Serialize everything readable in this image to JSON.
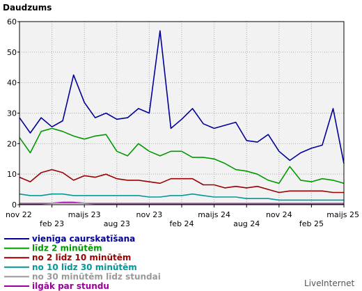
{
  "chart_data": {
    "type": "line",
    "title": "Daudzums",
    "ylim": [
      0,
      60
    ],
    "y_ticks": [
      0,
      10,
      20,
      30,
      40,
      50,
      60
    ],
    "grid": true,
    "x_tick_labels": [
      "nov 22",
      "feb 23",
      "maijs 23",
      "aug 23",
      "nov 23",
      "feb 24",
      "maijs 24",
      "aug 24",
      "nov 24",
      "feb 25",
      "maijs 25"
    ],
    "legend_position": "bottom",
    "series": [
      {
        "name": "vienīga caurskatīšana",
        "color": "#000099",
        "values": [
          28.5,
          23.5,
          28.5,
          25.5,
          27.5,
          42.5,
          33.5,
          28.5,
          30,
          28,
          28.5,
          31.5,
          30,
          57,
          25,
          28,
          31.5,
          26.5,
          25,
          26,
          27,
          21,
          20.5,
          23,
          17.5,
          14.5,
          17,
          18.5,
          19.5,
          31.5,
          13.5
        ]
      },
      {
        "name": "līdz 2 minūtēm",
        "color": "#009900",
        "values": [
          22,
          17,
          24,
          25,
          24,
          22.5,
          21.5,
          22.5,
          23,
          17.5,
          16,
          20,
          17.5,
          16,
          17.5,
          17.5,
          15.5,
          15.5,
          15,
          13.5,
          11.5,
          11,
          10,
          8,
          7,
          12.5,
          8,
          7.5,
          8.5,
          8,
          7
        ]
      },
      {
        "name": "no 2 līdz 10 minūtēm",
        "color": "#990000",
        "values": [
          9,
          7.5,
          10.5,
          11.5,
          10.5,
          8,
          9.5,
          9,
          10,
          8.5,
          8,
          8,
          7.5,
          7,
          8.5,
          8.5,
          8.5,
          6.5,
          6.5,
          5.5,
          6,
          5.5,
          6,
          5,
          4,
          4.5,
          4.5,
          4.5,
          4.5,
          4,
          4
        ]
      },
      {
        "name": "no 10 līdz 30 minūtēm",
        "color": "#009999",
        "values": [
          3.5,
          3,
          3,
          3.5,
          3.5,
          3,
          3,
          3,
          3,
          3,
          3,
          3,
          2.5,
          2.5,
          3,
          3,
          3.5,
          3,
          2.5,
          2.5,
          2.5,
          2,
          2,
          2,
          1.5,
          1.5,
          1.5,
          1.5,
          1.5,
          1.5,
          1.5
        ]
      },
      {
        "name": "no 30 minūtēm līdz stundai",
        "color": "#999999",
        "values": [
          0.5,
          0.5,
          0.5,
          0.5,
          0.5,
          0.5,
          0.5,
          0.5,
          0.5,
          0.5,
          0.5,
          0.5,
          0.5,
          0.5,
          0.5,
          0.5,
          0.5,
          0.5,
          0.5,
          0.5,
          0.5,
          0.5,
          0.5,
          0.5,
          0.5,
          0.5,
          0.5,
          0.5,
          0.5,
          0.5,
          0.5
        ]
      },
      {
        "name": "ilgāk par stundu",
        "color": "#990099",
        "values": [
          0.3,
          0.3,
          0.3,
          0.5,
          0.8,
          0.8,
          0.5,
          0.3,
          0.3,
          0.3,
          0.3,
          0.3,
          0.3,
          0.3,
          0.3,
          0.3,
          0.3,
          0.3,
          0.3,
          0.3,
          0.3,
          0.3,
          0.3,
          0.3,
          0.3,
          0.3,
          0.3,
          0.3,
          0.3,
          0.3,
          0.3
        ]
      }
    ]
  },
  "brand": "LiveInternet"
}
